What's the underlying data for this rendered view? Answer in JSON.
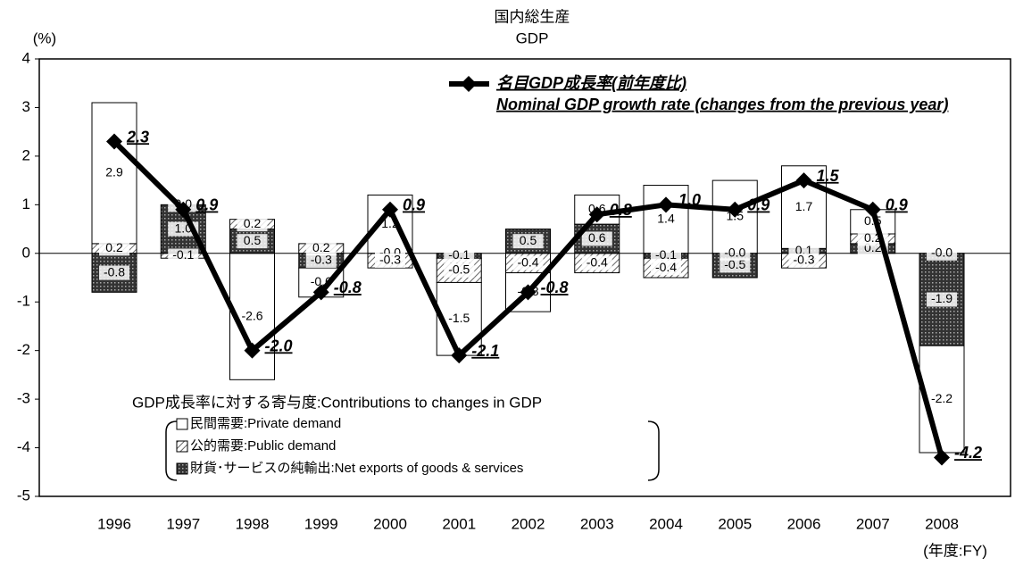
{
  "chart_data": {
    "type": "bar",
    "title": "国内総生産",
    "subtitle": "GDP",
    "y_label": "(%)",
    "x_label": "(年度:FY)",
    "categories": [
      "1996",
      "1997",
      "1998",
      "1999",
      "2000",
      "2001",
      "2002",
      "2003",
      "2004",
      "2005",
      "2006",
      "2007",
      "2008"
    ],
    "ylim": [
      -5,
      4
    ],
    "yticks": [
      4,
      3,
      2,
      1,
      0,
      -1,
      -2,
      -3,
      -4,
      -5
    ],
    "legend_title": "GDP成長率に対する寄与度:Contributions to changes in GDP",
    "series": [
      {
        "name": "財貨･サービスの純輸出:Net exports of goods & services",
        "color": "#333333",
        "pattern": "dots",
        "values": [
          -0.8,
          1.0,
          0.5,
          -0.3,
          -0.0,
          -0.1,
          0.5,
          0.6,
          -0.1,
          -0.5,
          0.1,
          0.2,
          -1.9
        ],
        "value_labels": [
          "-0.8",
          "1.0",
          "0.5",
          "-0.3",
          "-0.0",
          "-0.1",
          "0.5",
          "0.6",
          "-0.1",
          "-0.5",
          "0.1",
          "0.2",
          "-1.9"
        ]
      },
      {
        "name": "公的需要:Public demand",
        "color": "#888888",
        "pattern": "hatch",
        "values": [
          0.2,
          -0.1,
          0.2,
          0.2,
          -0.3,
          -0.5,
          -0.4,
          -0.4,
          -0.4,
          -0.0,
          -0.3,
          0.2,
          -0.0
        ],
        "value_labels": [
          "0.2",
          "-0.1",
          "0.2",
          "0.2",
          "-0.3",
          "-0.5",
          "-0.4",
          "-0.4",
          "-0.4",
          "-0.0",
          "-0.3",
          "0.2",
          "-0.0"
        ]
      },
      {
        "name": "民間需要:Private demand",
        "color": "#ffffff",
        "pattern": "none",
        "values": [
          2.9,
          0.0,
          -2.6,
          -0.6,
          1.2,
          -1.5,
          -0.8,
          0.6,
          1.4,
          1.5,
          1.7,
          0.5,
          -2.2
        ],
        "value_labels": [
          "2.9",
          "0.0",
          "-2.6",
          "-0.6",
          "1.2",
          "-1.5",
          "-0.8",
          "0.6",
          "1.4",
          "1.5",
          "1.7",
          "0.5",
          "-2.2"
        ],
        "label_colors": [
          "#000000",
          "#000000",
          "#000000",
          "#000000",
          "#000000",
          "#000000",
          "#000000",
          "#000000",
          "#000000",
          "#000000",
          "#000000",
          "#000000",
          "#ff0000"
        ]
      },
      {
        "name": "名目GDP成長率(前年度比)",
        "subname": "Nominal GDP growth rate (changes from the previous year)",
        "type": "line",
        "color": "#000000",
        "values": [
          2.3,
          0.9,
          -2.0,
          -0.8,
          0.9,
          -2.1,
          -0.8,
          0.8,
          1.0,
          0.9,
          1.5,
          0.9,
          -4.2
        ],
        "value_labels": [
          "2.3",
          "0.9",
          "-2.0",
          "-0.8",
          "0.9",
          "-2.1",
          "-0.8",
          "0.8",
          "1.0",
          "0.9",
          "1.5",
          "0.9",
          "-4.2"
        ],
        "label_colors": [
          "#000000",
          "#000000",
          "#000000",
          "#000000",
          "#000000",
          "#000000",
          "#000000",
          "#000000",
          "#000000",
          "#000000",
          "#000000",
          "#000000",
          "#ff0000"
        ]
      }
    ]
  }
}
